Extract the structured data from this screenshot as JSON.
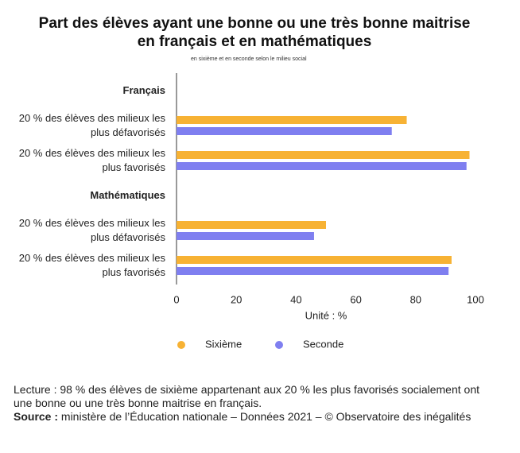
{
  "chart_data": {
    "type": "hbar",
    "title": "Part des élèves ayant une bonne ou une très bonne maitrise en français et en mathématiques",
    "subtitle": "en sixième et en seconde selon le milieu social",
    "x_label": "Unité : %",
    "categories": [
      "Français",
      "20 % des élèves des milieux les plus défavorisés",
      "20 % des élèves des milieux les plus favorisés",
      "Mathématiques",
      "20 % des élèves des milieux les plus défavorisés",
      "20 % des élèves des milieux les plus favorisés"
    ],
    "series": [
      {
        "name": "Sixième",
        "color": "#f7b234",
        "values": [
          null,
          77,
          98,
          null,
          50,
          92
        ]
      },
      {
        "name": "Seconde",
        "color": "#7f7ff0",
        "values": [
          null,
          72,
          97,
          null,
          46,
          91
        ]
      }
    ],
    "xlim": [
      0,
      100
    ],
    "xticks": [
      0,
      20,
      40,
      60,
      80,
      100
    ],
    "grid": false
  },
  "footer": {
    "lecture": "Lecture : 98 % des élèves de sixième appartenant aux 20 % les plus favorisés socialement ont une bonne ou une très bonne maitrise en français.",
    "source_label": "Source :",
    "source": "ministère de l’Éducation nationale – Données 2021 – © Observatoire des inégalités"
  }
}
